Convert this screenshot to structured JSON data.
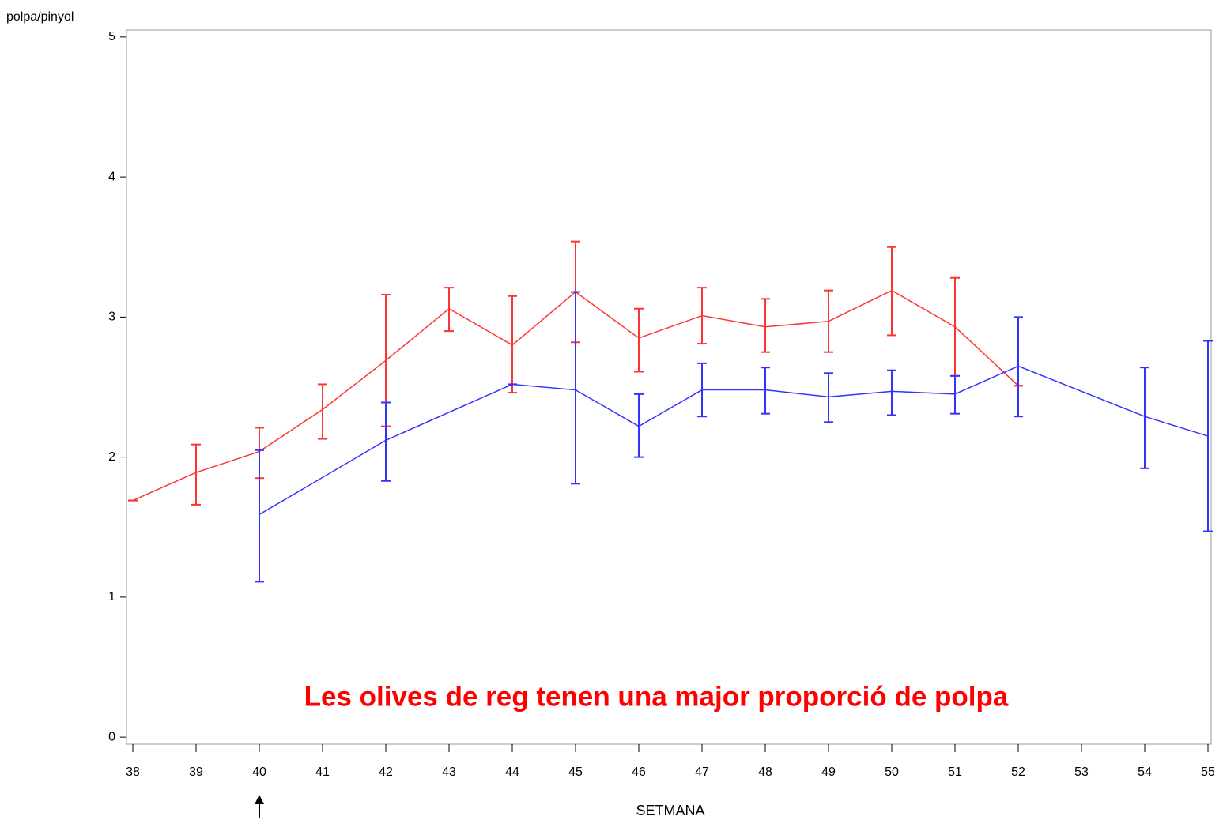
{
  "chart_data": {
    "type": "line",
    "ylabel": "polpa/pinyol",
    "xlabel": "SETMANA",
    "annotation": "Les olives de reg tenen una major proporció de polpa",
    "annotation_color": "#ff0000",
    "xlim": [
      37.9,
      55.05
    ],
    "ylim": [
      -0.05,
      5.05
    ],
    "xticks": [
      38,
      39,
      40,
      41,
      42,
      43,
      44,
      45,
      46,
      47,
      48,
      49,
      50,
      51,
      52,
      53,
      54,
      55
    ],
    "yticks": [
      0,
      1,
      2,
      3,
      4,
      5
    ],
    "series": [
      {
        "color": "#ff3333",
        "x": [
          38,
          39,
          40,
          41,
          42,
          43,
          44,
          45,
          46,
          47,
          48,
          49,
          50,
          51,
          52
        ],
        "values": [
          1.69,
          1.89,
          2.04,
          2.34,
          2.69,
          3.06,
          2.8,
          3.18,
          2.85,
          3.01,
          2.93,
          2.97,
          3.19,
          2.93,
          2.51
        ],
        "lower": [
          1.69,
          1.66,
          1.85,
          2.13,
          2.22,
          2.9,
          2.46,
          2.82,
          2.61,
          2.81,
          2.75,
          2.75,
          2.87,
          2.58,
          2.51
        ],
        "upper": [
          1.69,
          2.09,
          2.21,
          2.52,
          3.16,
          3.21,
          3.15,
          3.54,
          3.06,
          3.21,
          3.13,
          3.19,
          3.5,
          3.28,
          2.51
        ]
      },
      {
        "color": "#3333ff",
        "x": [
          40,
          42,
          44,
          45,
          46,
          47,
          48,
          49,
          50,
          51,
          52,
          54,
          55
        ],
        "values": [
          1.59,
          2.12,
          2.52,
          2.48,
          2.22,
          2.48,
          2.48,
          2.43,
          2.47,
          2.45,
          2.65,
          2.29,
          2.15
        ],
        "lower": [
          1.11,
          1.83,
          2.52,
          1.81,
          2.0,
          2.29,
          2.31,
          2.25,
          2.3,
          2.31,
          2.29,
          1.92,
          1.47
        ],
        "upper": [
          2.05,
          2.39,
          2.52,
          3.18,
          2.45,
          2.67,
          2.64,
          2.6,
          2.62,
          2.58,
          3.0,
          2.64,
          2.83
        ]
      }
    ]
  }
}
